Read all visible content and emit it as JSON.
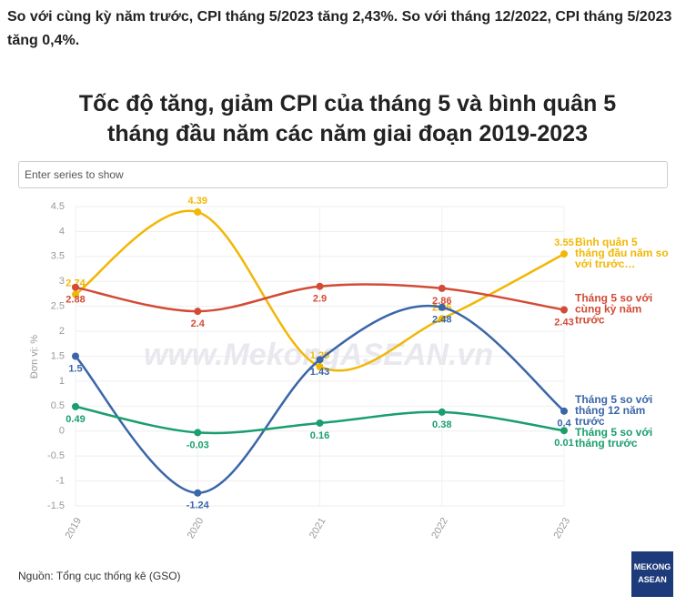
{
  "header": "So với cùng kỳ năm trước, CPI tháng 5/2023 tăng 2,43%. So với tháng 12/2022, CPI tháng 5/2023 tăng 0,4%.",
  "search_placeholder": "Enter series to show",
  "source": "Nguồn: Tổng cục thống kê (GSO)",
  "watermark": "www.MekongASEAN.vn",
  "logo": "MEKONG ASEAN",
  "chart_data": {
    "type": "line",
    "title": "Tốc độ tăng, giảm CPI của tháng 5 và bình quân 5 tháng đầu năm các năm giai đoạn 2019-2023",
    "y_label": "Đơn vị: %",
    "categories": [
      "2019",
      "2020",
      "2021",
      "2022",
      "2023"
    ],
    "ylim": [
      -1.5,
      4.5
    ],
    "yticks": [
      -1.5,
      -1,
      -0.5,
      0,
      0.5,
      1,
      1.5,
      2,
      2.5,
      3,
      3.5,
      4,
      4.5
    ],
    "grid": true,
    "series": [
      {
        "name": "Bình quân 5 tháng đầu năm so với trước…",
        "color": "#f2b705",
        "values": [
          2.74,
          4.39,
          1.29,
          2.25,
          3.55
        ],
        "label_position": "above"
      },
      {
        "name": "Tháng 5 so với cùng kỳ năm trước",
        "color": "#d24b36",
        "values": [
          2.88,
          2.4,
          2.9,
          2.86,
          2.43
        ],
        "label_position": "below"
      },
      {
        "name": "Tháng 5 so với tháng 12 năm trước",
        "color": "#3a66a8",
        "values": [
          1.5,
          -1.24,
          1.43,
          2.48,
          0.4
        ],
        "label_position": "below"
      },
      {
        "name": "Tháng 5 so với tháng trước",
        "color": "#1a9e6e",
        "values": [
          0.49,
          -0.03,
          0.16,
          0.38,
          0.01
        ],
        "label_position": "below"
      }
    ]
  }
}
